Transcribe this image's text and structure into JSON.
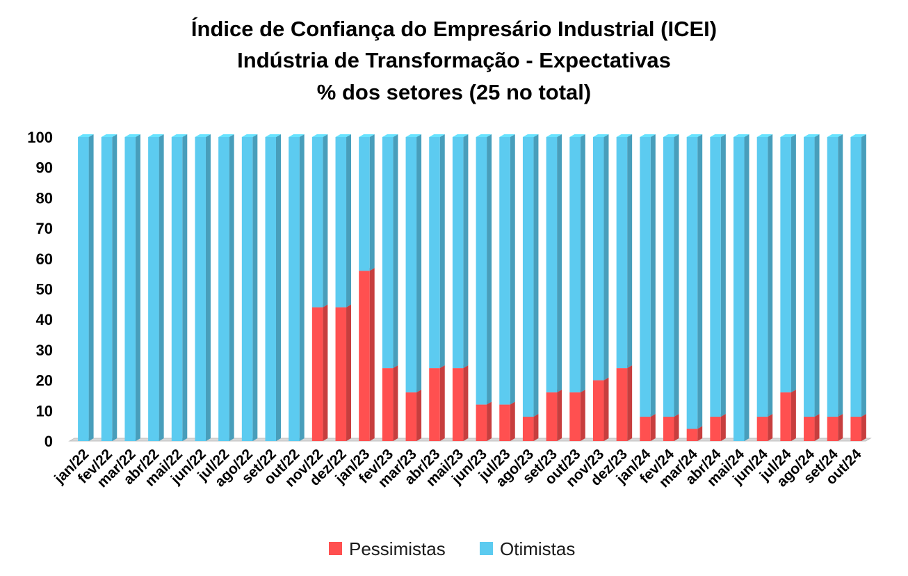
{
  "chart_data": {
    "type": "bar",
    "stacked": true,
    "title": [
      "Índice de Confiança do Empresário Industrial (ICEI)",
      "Indústria de Transformação - Expectativas",
      "% dos setores (25 no total)"
    ],
    "xlabel": "",
    "ylabel": "",
    "ylim": [
      0,
      100
    ],
    "yticks": [
      0,
      10,
      20,
      30,
      40,
      50,
      60,
      70,
      80,
      90,
      100
    ],
    "grid": false,
    "legend_position": "bottom",
    "categories": [
      "jan/22",
      "fev/22",
      "mar/22",
      "abr/22",
      "mai/22",
      "jun/22",
      "jul/22",
      "ago/22",
      "set/22",
      "out/22",
      "nov/22",
      "dez/22",
      "jan/23",
      "fev/23",
      "mar/23",
      "abr/23",
      "mai/23",
      "jun/23",
      "jul/23",
      "ago/23",
      "set/23",
      "out/23",
      "nov/23",
      "dez/23",
      "jan/24",
      "fev/24",
      "mar/24",
      "abr/24",
      "mai/24",
      "jun/24",
      "jul/24",
      "ago/24",
      "set/24",
      "out/24"
    ],
    "series": [
      {
        "name": "Pessimistas",
        "color": "#ff5050",
        "values": [
          0,
          0,
          0,
          0,
          0,
          0,
          0,
          0,
          0,
          0,
          44,
          44,
          56,
          24,
          16,
          24,
          24,
          12,
          12,
          8,
          16,
          16,
          20,
          24,
          8,
          8,
          4,
          8,
          0,
          8,
          16,
          8,
          8,
          8
        ]
      },
      {
        "name": "Otimistas",
        "color": "#5ccbf0",
        "values": [
          100,
          100,
          100,
          100,
          100,
          100,
          100,
          100,
          100,
          100,
          56,
          56,
          44,
          76,
          84,
          76,
          76,
          88,
          88,
          92,
          84,
          84,
          80,
          76,
          92,
          92,
          96,
          92,
          100,
          92,
          84,
          92,
          92,
          92
        ]
      }
    ]
  }
}
